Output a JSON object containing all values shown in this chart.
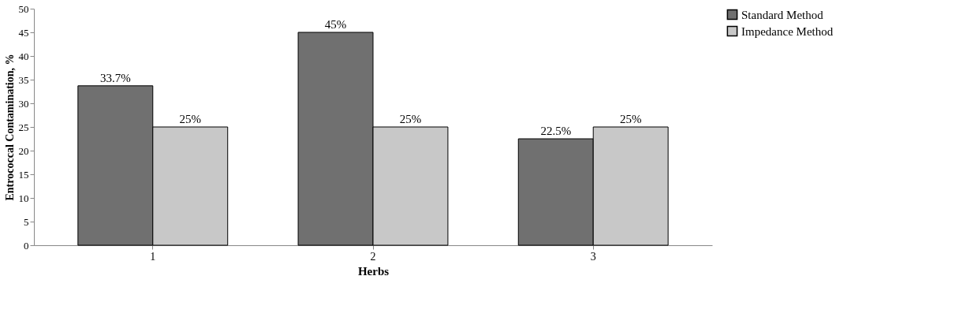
{
  "chart_data": {
    "type": "bar",
    "xlabel": "Herbs",
    "ylabel": "Entrococcal Contamination, %",
    "categories": [
      "1",
      "2",
      "3"
    ],
    "series": [
      {
        "name": "Standard Method",
        "color": "#707070",
        "values": [
          33.7,
          45,
          22.5
        ],
        "value_labels": [
          "33.7%",
          "45%",
          "22.5%"
        ]
      },
      {
        "name": "Impedance Method",
        "color": "#c8c8c8",
        "values": [
          25,
          25,
          25
        ],
        "value_labels": [
          "25%",
          "25%",
          "25%"
        ]
      }
    ],
    "ylim": [
      0,
      50
    ],
    "yticks": [
      0,
      5,
      10,
      15,
      20,
      25,
      30,
      35,
      40,
      45,
      50
    ],
    "grid": false,
    "legend": "top right"
  }
}
